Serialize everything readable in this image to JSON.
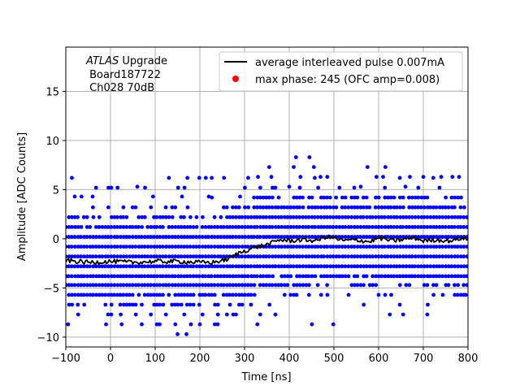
{
  "chart_data": {
    "type": "scatter",
    "xlabel": "Time [ns]",
    "ylabel": "Amplitude [ADC Counts]",
    "xlim": [
      -100,
      800
    ],
    "ylim": [
      -11,
      19.5
    ],
    "xticks": [
      -100,
      0,
      100,
      200,
      300,
      400,
      500,
      600,
      700,
      800
    ],
    "yticks": [
      -10,
      -5,
      0,
      5,
      10,
      15
    ],
    "grid": true,
    "legend_position": "top-right",
    "annotation": {
      "line1_italic": "ATLAS",
      "line1_rest": " Upgrade",
      "line2": " Board187722",
      "line3": " Ch028 70dB"
    },
    "colors": {
      "scatter": "#0000ff",
      "line": "#000000",
      "marker": "#ff0000"
    },
    "series": [
      {
        "name": "average interleaved pulse 0.007mA",
        "kind": "line",
        "x": [
          -100,
          -50,
          0,
          50,
          100,
          150,
          200,
          230,
          260,
          290,
          320,
          350,
          380,
          400,
          430,
          460,
          480,
          500,
          520,
          550,
          580,
          600,
          630,
          650,
          680,
          700,
          730,
          760,
          790,
          800
        ],
        "y": [
          -2.2,
          -2.4,
          -2.3,
          -2.4,
          -2.3,
          -2.3,
          -2.4,
          -2.4,
          -2.1,
          -1.4,
          -0.9,
          -0.6,
          -0.1,
          -0.2,
          -0.1,
          -0.2,
          0.2,
          0.1,
          -0.2,
          -0.1,
          -0.3,
          0.1,
          -0.2,
          -0.1,
          0.1,
          -0.2,
          -0.1,
          -0.2,
          0.1,
          -0.1
        ]
      },
      {
        "name": "max phase: 245 (OFC amp=0.008)",
        "kind": "marker",
        "x": [],
        "y": []
      },
      {
        "name": "",
        "kind": "scatter",
        "levels": [
          -8.7,
          -7.7,
          -6.7,
          -5.7,
          -4.7,
          -3.8,
          -2.8,
          -1.8,
          -0.8,
          0.2,
          1.2,
          2.2,
          3.2,
          4.2,
          5.2,
          6.2
        ],
        "outliers": [
          [
            -95,
            -8.7
          ],
          [
            -80,
            4.3
          ],
          [
            -65,
            4.3
          ],
          [
            -40,
            4.3
          ],
          [
            -10,
            -8.7
          ],
          [
            25,
            -8.7
          ],
          [
            60,
            5.3
          ],
          [
            70,
            -8.7
          ],
          [
            95,
            4.3
          ],
          [
            110,
            -8.7
          ],
          [
            145,
            -8.7
          ],
          [
            150,
            -9.7
          ],
          [
            160,
            4.3
          ],
          [
            170,
            -9.7
          ],
          [
            180,
            -8.7
          ],
          [
            200,
            -8.7
          ],
          [
            220,
            4.3
          ],
          [
            240,
            -8.7
          ],
          [
            290,
            4.3
          ],
          [
            330,
            6.3
          ],
          [
            335,
            -7.7
          ],
          [
            355,
            7.3
          ],
          [
            360,
            6.3
          ],
          [
            400,
            5.3
          ],
          [
            410,
            7.3
          ],
          [
            415,
            8.3
          ],
          [
            425,
            6.3
          ],
          [
            445,
            8.3
          ],
          [
            455,
            7.3
          ],
          [
            470,
            6.3
          ],
          [
            485,
            6.3
          ],
          [
            560,
            5.3
          ],
          [
            575,
            7.3
          ],
          [
            595,
            6.3
          ],
          [
            600,
            -5.7
          ],
          [
            610,
            6.3
          ],
          [
            615,
            7.3
          ],
          [
            625,
            -7.7
          ],
          [
            660,
            5.3
          ],
          [
            670,
            6.3
          ],
          [
            700,
            6.3
          ],
          [
            710,
            -6.7
          ],
          [
            740,
            6.3
          ],
          [
            765,
            6.3
          ],
          [
            780,
            6.3
          ],
          [
            795,
            -5.7
          ]
        ]
      }
    ]
  }
}
